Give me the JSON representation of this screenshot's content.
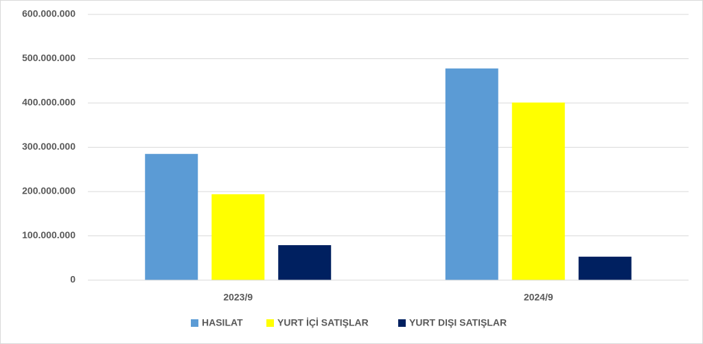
{
  "chart_data": {
    "type": "bar",
    "categories": [
      "2023/9",
      "2024/9"
    ],
    "series": [
      {
        "name": "HASILAT",
        "color": "#5b9bd5",
        "values": [
          285000000,
          478000000
        ]
      },
      {
        "name": "YURT İÇİ SATIŞLAR",
        "color": "#ffff00",
        "values": [
          194000000,
          401000000
        ]
      },
      {
        "name": "YURT DIŞI SATIŞLAR",
        "color": "#002060",
        "values": [
          79000000,
          53000000
        ]
      }
    ],
    "ylim": [
      0,
      600000000
    ],
    "yticks": [
      0,
      {
        "value": 100000000,
        "label": "100.000.000"
      },
      {
        "value": 200000000,
        "label": "200.000.000"
      },
      {
        "value": 300000000,
        "label": "300.000.000"
      },
      {
        "value": 400000000,
        "label": "400.000.000"
      },
      {
        "value": 500000000,
        "label": "500.000.000"
      },
      {
        "value": 600000000,
        "label": "600.000.000"
      }
    ],
    "grid": true,
    "legend": "bottom"
  }
}
